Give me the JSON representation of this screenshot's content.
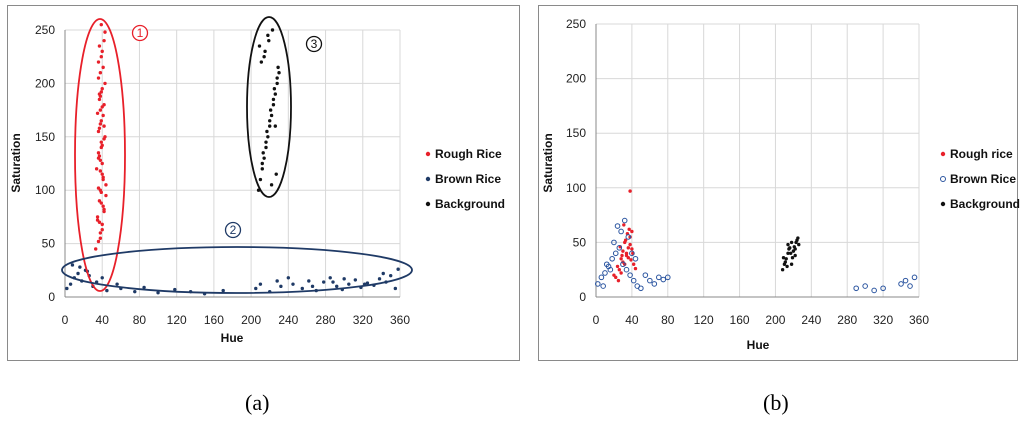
{
  "chart_data": [
    {
      "panel": "a",
      "type": "scatter",
      "xlabel": "Hue",
      "ylabel": "Saturation",
      "xlim": [
        0,
        360
      ],
      "ylim": [
        0,
        250
      ],
      "xticks": [
        0,
        40,
        80,
        120,
        160,
        200,
        240,
        280,
        320,
        360
      ],
      "yticks": [
        0,
        50,
        100,
        150,
        200,
        250
      ],
      "grid": true,
      "legend_position": "right",
      "series": [
        {
          "name": "Rough Rice",
          "color": "#e8202a",
          "marker": "dot",
          "x": [
            33,
            36,
            38,
            40,
            35,
            42,
            37,
            39,
            44,
            41,
            34,
            38,
            36,
            40,
            43,
            37,
            39,
            35,
            42,
            38,
            40,
            36,
            41,
            39,
            37,
            43,
            38,
            40,
            35,
            42,
            39,
            44,
            36,
            41,
            38,
            40,
            37,
            39,
            42,
            36,
            38,
            41,
            40,
            37,
            39,
            43,
            38,
            36,
            40,
            42,
            39,
            37,
            41,
            38,
            40,
            36,
            39,
            42,
            38,
            37
          ],
          "y": [
            45,
            52,
            60,
            68,
            75,
            82,
            90,
            98,
            105,
            112,
            120,
            128,
            135,
            142,
            150,
            158,
            165,
            172,
            180,
            188,
            195,
            205,
            215,
            225,
            235,
            248,
            55,
            63,
            72,
            80,
            88,
            95,
            102,
            110,
            118,
            125,
            132,
            140,
            148,
            155,
            162,
            170,
            178,
            185,
            192,
            200,
            210,
            220,
            230,
            240,
            255,
            70,
            85,
            100,
            115,
            130,
            145,
            160,
            175,
            190
          ]
        },
        {
          "name": "Brown Rice",
          "color": "#1f3a66",
          "marker": "dot",
          "x": [
            2,
            6,
            10,
            14,
            18,
            22,
            26,
            30,
            34,
            45,
            60,
            75,
            85,
            100,
            118,
            135,
            150,
            170,
            205,
            220,
            232,
            245,
            255,
            262,
            270,
            278,
            285,
            292,
            298,
            305,
            312,
            318,
            325,
            332,
            338,
            345,
            350,
            355,
            358,
            8,
            16,
            24,
            40,
            56,
            210,
            228,
            240,
            266,
            288,
            300,
            322,
            342
          ],
          "y": [
            8,
            12,
            18,
            22,
            15,
            25,
            20,
            10,
            14,
            6,
            8,
            5,
            9,
            4,
            7,
            5,
            3,
            6,
            8,
            5,
            10,
            12,
            8,
            15,
            6,
            14,
            18,
            10,
            7,
            12,
            16,
            9,
            13,
            11,
            17,
            14,
            20,
            8,
            26,
            30,
            28,
            24,
            18,
            12,
            12,
            15,
            18,
            10,
            14,
            17,
            12,
            22
          ]
        },
        {
          "name": "Background",
          "color": "#111111",
          "marker": "dot",
          "x": [
            208,
            210,
            212,
            214,
            216,
            218,
            220,
            222,
            224,
            226,
            228,
            230,
            211,
            215,
            219,
            223,
            227,
            213,
            217,
            221,
            225,
            229,
            209,
            212,
            216,
            220,
            224,
            228,
            214,
            218,
            222,
            226
          ],
          "y": [
            100,
            110,
            120,
            130,
            140,
            150,
            160,
            170,
            180,
            190,
            200,
            210,
            220,
            230,
            240,
            250,
            115,
            135,
            155,
            175,
            195,
            215,
            235,
            125,
            145,
            165,
            185,
            205,
            225,
            245,
            105,
            160
          ]
        }
      ],
      "annotations": [
        {
          "text": "1",
          "color": "#e8202a"
        },
        {
          "text": "2",
          "color": "#1f3a66"
        },
        {
          "text": "3",
          "color": "#111111"
        }
      ]
    },
    {
      "panel": "b",
      "type": "scatter",
      "xlabel": "Hue",
      "ylabel": "Saturation",
      "xlim": [
        0,
        360
      ],
      "ylim": [
        0,
        250
      ],
      "xticks": [
        0,
        40,
        80,
        120,
        160,
        200,
        240,
        280,
        320,
        360
      ],
      "yticks": [
        0,
        50,
        100,
        150,
        200,
        250
      ],
      "grid": true,
      "legend_position": "right",
      "series": [
        {
          "name": "Rough rice",
          "color": "#e8202a",
          "marker": "dot",
          "x": [
            20,
            24,
            28,
            30,
            32,
            34,
            36,
            38,
            40,
            26,
            30,
            34,
            38,
            42,
            22,
            28,
            32,
            36,
            40,
            44,
            25,
            29,
            33,
            37,
            41,
            31,
            35,
            39,
            27,
            38
          ],
          "y": [
            20,
            28,
            35,
            42,
            50,
            38,
            45,
            55,
            60,
            25,
            32,
            40,
            48,
            30,
            18,
            22,
            30,
            36,
            44,
            26,
            15,
            38,
            52,
            62,
            40,
            66,
            58,
            34,
            46,
            97
          ]
        },
        {
          "name": "Brown Rice",
          "color": "#2b55a0",
          "marker": "circle",
          "x": [
            2,
            6,
            10,
            14,
            18,
            22,
            26,
            30,
            34,
            38,
            42,
            46,
            50,
            55,
            60,
            65,
            70,
            75,
            80,
            12,
            20,
            28,
            36,
            44,
            8,
            16,
            24,
            32,
            40,
            290,
            300,
            310,
            320,
            340,
            345,
            350,
            355
          ],
          "y": [
            12,
            18,
            22,
            28,
            35,
            40,
            45,
            30,
            25,
            20,
            15,
            10,
            8,
            20,
            15,
            12,
            18,
            16,
            18,
            30,
            50,
            60,
            55,
            35,
            10,
            25,
            65,
            70,
            40,
            8,
            10,
            6,
            8,
            12,
            15,
            10,
            18
          ]
        },
        {
          "name": "Background",
          "color": "#111111",
          "marker": "dot",
          "x": [
            208,
            210,
            212,
            214,
            216,
            218,
            220,
            222,
            224,
            226,
            211,
            215,
            219,
            223,
            213,
            217,
            221,
            225,
            209,
            214,
            218,
            222
          ],
          "y": [
            25,
            30,
            35,
            40,
            45,
            50,
            42,
            38,
            52,
            48,
            32,
            44,
            36,
            50,
            28,
            40,
            46,
            54,
            36,
            48,
            30,
            44
          ]
        }
      ]
    }
  ],
  "captions": {
    "a": "(a)",
    "b": "(b)"
  }
}
